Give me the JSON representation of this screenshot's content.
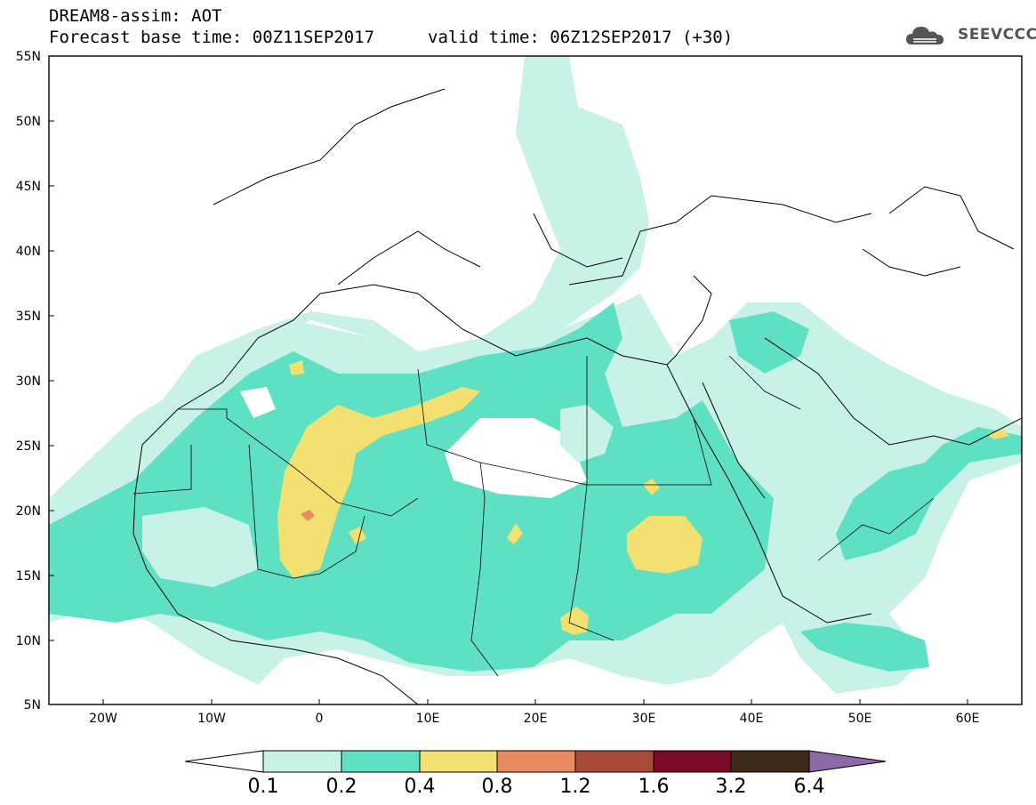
{
  "header": {
    "title": "DREAM8-assim: AOT",
    "base_time": "Forecast base time: 00Z11SEP2017",
    "valid_time": "valid time: 06Z12SEP2017 (+30)",
    "logo_text": "SEEVCCC"
  },
  "map": {
    "lat_labels": [
      "55N",
      "50N",
      "45N",
      "40N",
      "35N",
      "30N",
      "25N",
      "20N",
      "15N",
      "10N",
      "5N"
    ],
    "lon_labels": [
      "20W",
      "10W",
      "0",
      "10E",
      "20E",
      "30E",
      "40E",
      "50E",
      "60E"
    ],
    "extent": {
      "lon_min": -25,
      "lon_max": 65,
      "lat_min": 5,
      "lat_max": 55
    }
  },
  "colorbar": {
    "labels": [
      "0.1",
      "0.2",
      "0.4",
      "0.8",
      "1.2",
      "1.6",
      "3.2",
      "6.4"
    ],
    "colors": [
      "#c8f2e8",
      "#5ee0c2",
      "#f2e070",
      "#e98a60",
      "#a84a3a",
      "#7a0a28",
      "#3f2a1a",
      "#8f68a8"
    ]
  }
}
